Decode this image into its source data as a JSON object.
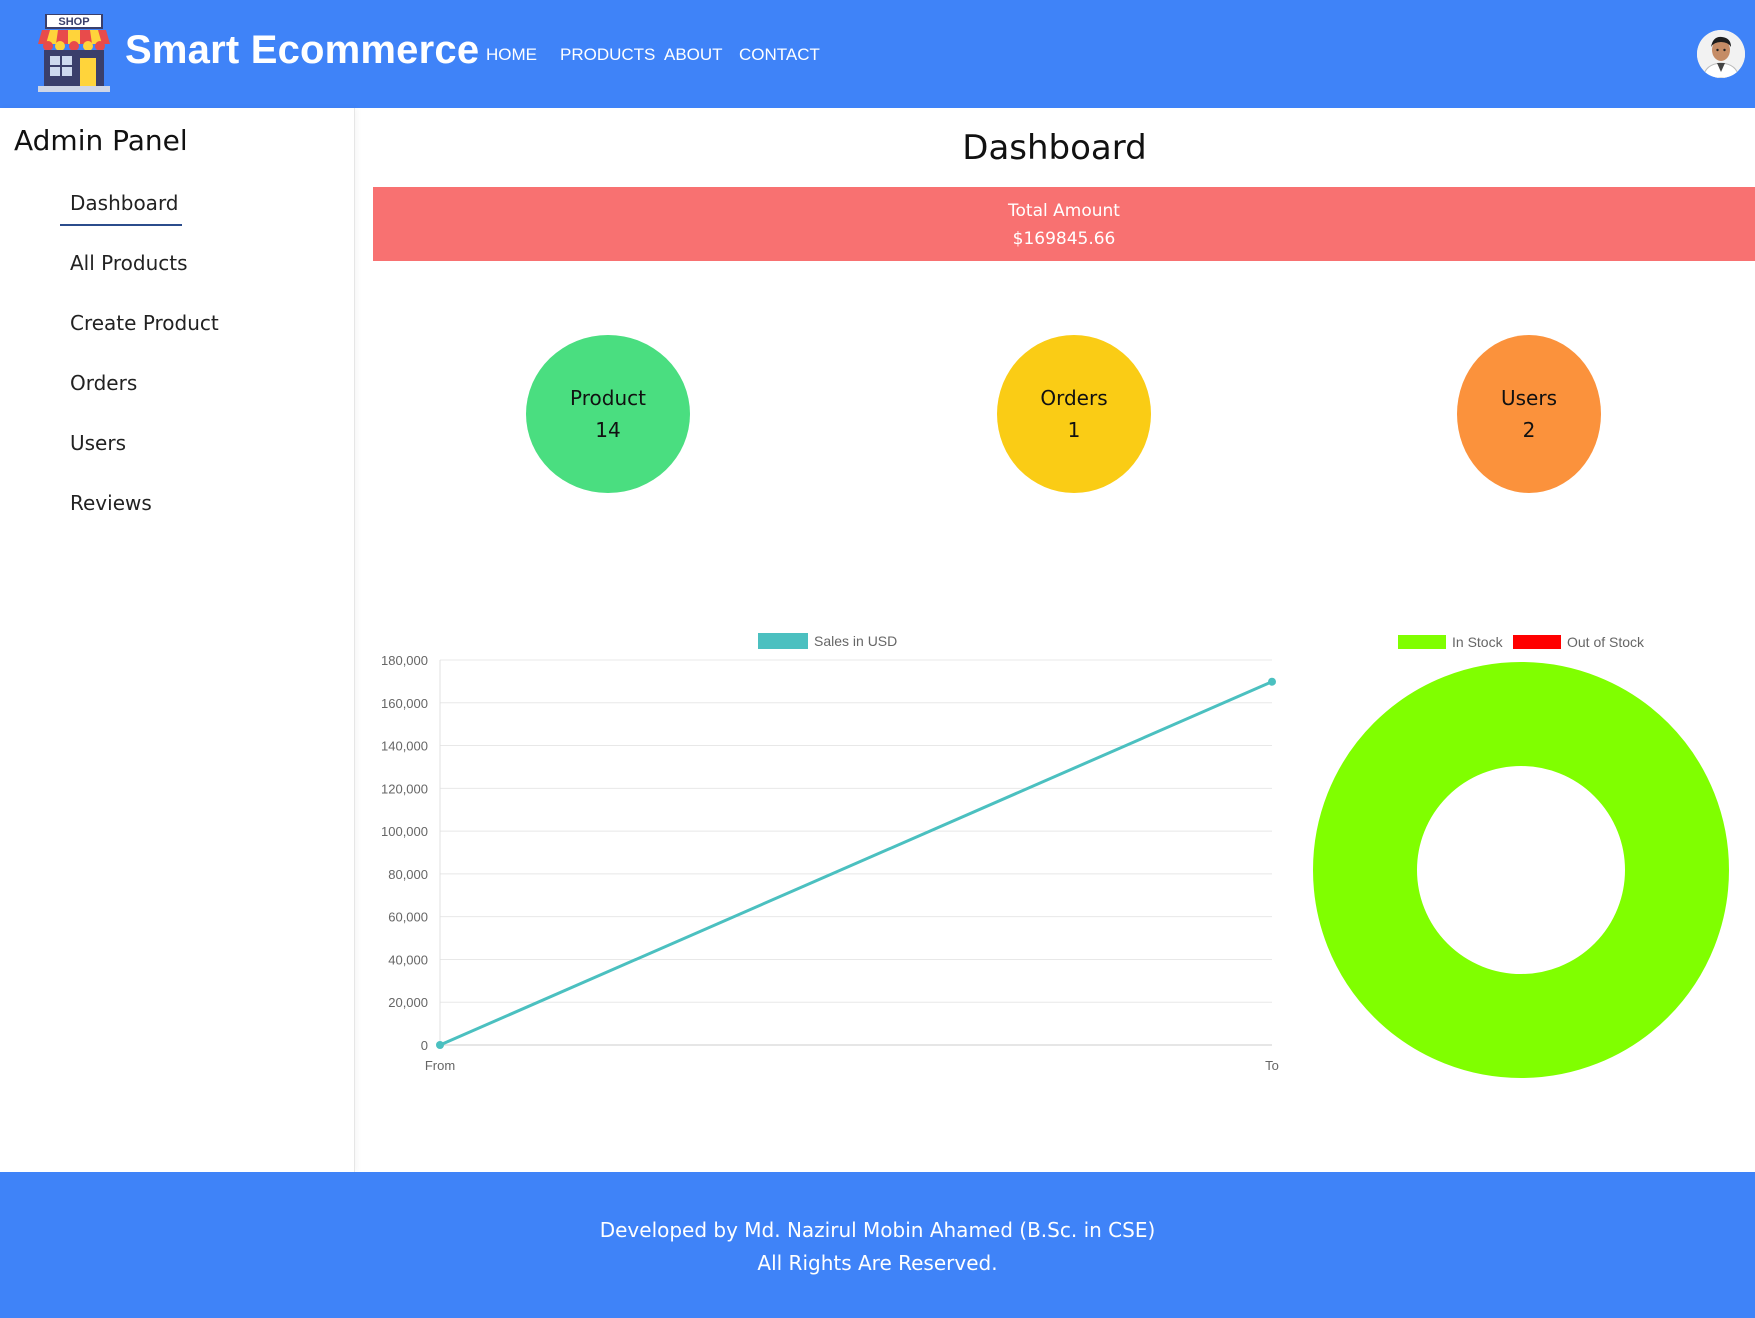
{
  "header": {
    "logo_text": "SHOP",
    "brand": "Smart Ecommerce",
    "nav": [
      "HOME",
      "PRODUCTS",
      "ABOUT",
      "CONTACT"
    ]
  },
  "sidebar": {
    "title": "Admin Panel",
    "items": [
      "Dashboard",
      "All Products",
      "Create Product",
      "Orders",
      "Users",
      "Reviews"
    ],
    "active": "Dashboard"
  },
  "main": {
    "title": "Dashboard",
    "total": {
      "label": "Total Amount",
      "value": "$169845.66"
    },
    "stats": [
      {
        "label": "Product",
        "value": "14",
        "color": "#4ade80"
      },
      {
        "label": "Orders",
        "value": "1",
        "color": "#facc15"
      },
      {
        "label": "Users",
        "value": "2",
        "color": "#fb923c"
      }
    ]
  },
  "chart_data": [
    {
      "type": "line",
      "categories": [
        "From",
        "To"
      ],
      "series": [
        {
          "name": "Sales in USD",
          "values": [
            0,
            169845.66
          ],
          "color": "#4bc0c0"
        }
      ],
      "ylim": [
        0,
        180000
      ],
      "yticks": [
        "0",
        "20,000",
        "40,000",
        "60,000",
        "80,000",
        "100,000",
        "120,000",
        "140,000",
        "160,000",
        "180,000"
      ],
      "grid": true,
      "legend": "top"
    },
    {
      "type": "pie",
      "variant": "doughnut",
      "labels": [
        "In Stock",
        "Out of Stock"
      ],
      "values": [
        14,
        0
      ],
      "colors": [
        "#80ff00",
        "#ff0000"
      ],
      "legend": "top"
    }
  ],
  "footer": {
    "line1": "Developed by Md. Nazirul Mobin Ahamed (B.Sc. in CSE)",
    "line2": "All Rights Are Reserved."
  }
}
